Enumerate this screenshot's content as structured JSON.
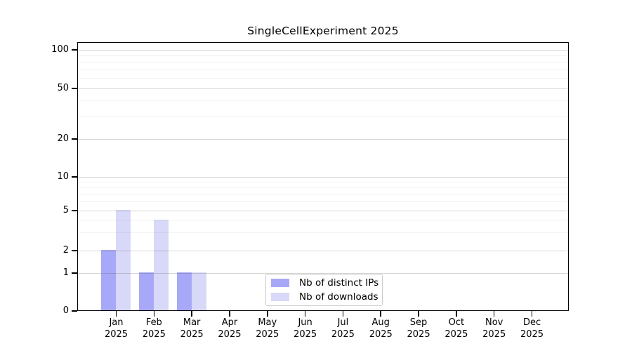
{
  "chart_data": {
    "type": "bar",
    "title": "SingleCellExperiment 2025",
    "year": "2025",
    "categories": [
      "Jan 2025",
      "Feb 2025",
      "Mar 2025",
      "Apr 2025",
      "May 2025",
      "Jun 2025",
      "Jul 2025",
      "Aug 2025",
      "Sep 2025",
      "Oct 2025",
      "Nov 2025",
      "Dec 2025"
    ],
    "months": [
      "Jan",
      "Feb",
      "Mar",
      "Apr",
      "May",
      "Jun",
      "Jul",
      "Aug",
      "Sep",
      "Oct",
      "Nov",
      "Dec"
    ],
    "series": [
      {
        "name": "Nb of distinct IPs",
        "color": "#a8a8f8",
        "values": [
          2,
          1,
          1,
          0,
          0,
          0,
          0,
          0,
          0,
          0,
          0,
          0
        ]
      },
      {
        "name": "Nb of downloads",
        "color": "#d8d8f8",
        "values": [
          5,
          4,
          1,
          0,
          0,
          0,
          0,
          0,
          0,
          0,
          0,
          0
        ]
      }
    ],
    "xlabel": "",
    "ylabel": "",
    "y_axis": {
      "scale": "log-like",
      "major_ticks": [
        0,
        1,
        2,
        5,
        10,
        20,
        50,
        100
      ],
      "minor_gridlines": [
        3,
        4,
        6,
        7,
        8,
        9,
        30,
        40,
        60,
        70,
        80,
        90
      ],
      "ylim_top_label": 100
    },
    "grid": true,
    "legend": {
      "position": "lower-center",
      "entries": [
        "Nb of distinct IPs",
        "Nb of downloads"
      ]
    },
    "colors": {
      "distinct_ips_bar": "#a8a8f8",
      "downloads_bar": "#d8d8f8",
      "major_grid": "#d6d6d6",
      "minor_grid": "#efefef",
      "axis": "#000000",
      "legend_border": "#cccccc",
      "background": "#ffffff"
    }
  }
}
